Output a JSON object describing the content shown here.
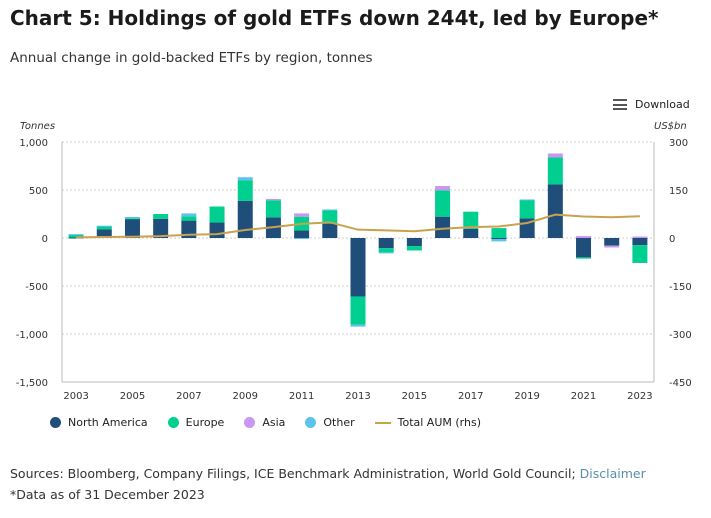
{
  "title": "Chart 5: Holdings of gold ETFs down 244t, led by Europe*",
  "subtitle": "Annual change in gold-backed ETFs by region, tonnes",
  "download_label": "Download",
  "sources_text": "Sources: Bloomberg, Company Filings, ICE Benchmark Administration, World Gold Council;",
  "disclaimer_link": "Disclaimer",
  "footnote": "*Data as of 31 December 2023",
  "chart_data": {
    "type": "bar",
    "stacked": true,
    "title": "Chart 5: Holdings of gold ETFs down 244t, led by Europe*",
    "ylabel": "Tonnes",
    "y2label": "US$bn",
    "ylim": [
      -1500,
      1000
    ],
    "y2lim": [
      -450,
      300
    ],
    "yticks": [
      "1,000",
      "500",
      "0",
      "-500",
      "-1,000",
      "-1,500"
    ],
    "y2ticks": [
      "300",
      "150",
      "0",
      "-150",
      "-300",
      "-450"
    ],
    "xtick_labels": [
      "2003",
      "2005",
      "2007",
      "2009",
      "2011",
      "2013",
      "2015",
      "2017",
      "2019",
      "2021",
      "2023"
    ],
    "grid": true,
    "legend_position": "bottom",
    "categories": [
      "2003",
      "2004",
      "2005",
      "2006",
      "2007",
      "2008",
      "2009",
      "2010",
      "2011",
      "2012",
      "2013",
      "2014",
      "2015",
      "2016",
      "2017",
      "2018",
      "2019",
      "2020",
      "2021",
      "2022",
      "2023"
    ],
    "series": [
      {
        "name": "North America",
        "color": "#1f4e7a",
        "values": [
          5,
          89,
          200,
          200,
          181,
          161,
          386,
          215,
          79,
          150,
          -609,
          -106,
          -86,
          222,
          96,
          -10,
          205,
          558,
          -202,
          -79,
          -75
        ]
      },
      {
        "name": "Europe",
        "color": "#00cf8f",
        "values": [
          30,
          34,
          5,
          50,
          45,
          167,
          216,
          178,
          143,
          137,
          -294,
          -44,
          -44,
          275,
          178,
          103,
          192,
          281,
          -13,
          0,
          -185
        ]
      },
      {
        "name": "Asia",
        "color": "#c996f2",
        "values": [
          0,
          0,
          0,
          0,
          0,
          0,
          0,
          14,
          34,
          0,
          0,
          0,
          0,
          44,
          0,
          0,
          0,
          41,
          20,
          -20,
          15
        ]
      },
      {
        "name": "Other",
        "color": "#5cc3ee",
        "values": [
          5,
          5,
          14,
          0,
          30,
          0,
          31,
          0,
          -10,
          10,
          -20,
          -10,
          0,
          0,
          0,
          -25,
          5,
          0,
          0,
          0,
          0
        ]
      }
    ],
    "line_series": {
      "name": "Total AUM (rhs)",
      "color": "#c9a24e",
      "axis": "right",
      "values": [
        2,
        3,
        4,
        6,
        10,
        12,
        25,
        34,
        44,
        49,
        26,
        24,
        21,
        29,
        34,
        36,
        47,
        73,
        67,
        65,
        68
      ]
    }
  }
}
